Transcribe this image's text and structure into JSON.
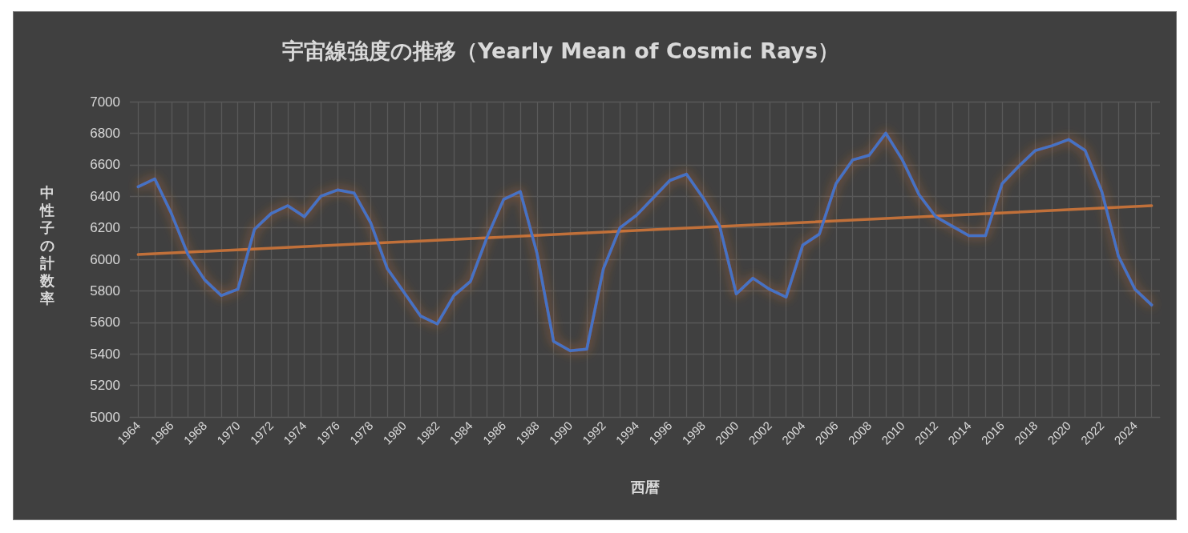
{
  "chart_data": {
    "type": "line",
    "title": "宇宙線強度の推移（Yearly Mean of Cosmic Rays）",
    "xlabel": "西暦",
    "ylabel": "中性子の計数率",
    "x": [
      1964,
      1965,
      1966,
      1967,
      1968,
      1969,
      1970,
      1971,
      1972,
      1973,
      1974,
      1975,
      1976,
      1977,
      1978,
      1979,
      1980,
      1981,
      1982,
      1983,
      1984,
      1985,
      1986,
      1987,
      1988,
      1989,
      1990,
      1991,
      1992,
      1993,
      1994,
      1995,
      1996,
      1997,
      1998,
      1999,
      2000,
      2001,
      2002,
      2003,
      2004,
      2005,
      2006,
      2007,
      2008,
      2009,
      2010,
      2011,
      2012,
      2013,
      2014,
      2015,
      2016,
      2017,
      2018,
      2019,
      2020,
      2021,
      2022,
      2023,
      2024,
      2025
    ],
    "series": [
      {
        "color": "#4472c4",
        "values": [
          6460,
          6510,
          6290,
          6030,
          5870,
          5770,
          5810,
          6190,
          6290,
          6340,
          6270,
          6400,
          6440,
          6420,
          6230,
          5940,
          5790,
          5640,
          5590,
          5770,
          5860,
          6140,
          6380,
          6430,
          6040,
          5480,
          5420,
          5430,
          5940,
          6200,
          6280,
          6390,
          6500,
          6540,
          6390,
          6210,
          5780,
          5880,
          5810,
          5760,
          6090,
          6160,
          6480,
          6630,
          6660,
          6800,
          6630,
          6410,
          6270,
          6210,
          6150,
          6150,
          6480,
          6590,
          6690,
          6720,
          6760,
          6690,
          6430,
          6020,
          5810,
          5710
        ]
      },
      {
        "type": "line",
        "color": "#c0703a",
        "x": [
          1964,
          2025
        ],
        "values": [
          6030,
          6340
        ]
      }
    ],
    "xlim": [
      1963.5,
      2025.5
    ],
    "xticks": [
      1964,
      {
        "value": 1965,
        "label": null
      },
      1966,
      {
        "value": 1967,
        "label": null
      },
      1968,
      {
        "value": 1969,
        "label": null
      },
      1970,
      {
        "value": 1971,
        "label": null
      },
      1972,
      {
        "value": 1973,
        "label": null
      },
      1974,
      {
        "value": 1975,
        "label": null
      },
      1976,
      {
        "value": 1977,
        "label": null
      },
      1978,
      {
        "value": 1979,
        "label": null
      },
      1980,
      {
        "value": 1981,
        "label": null
      },
      1982,
      {
        "value": 1983,
        "label": null
      },
      1984,
      {
        "value": 1985,
        "label": null
      },
      1986,
      {
        "value": 1987,
        "label": null
      },
      1988,
      {
        "value": 1989,
        "label": null
      },
      1990,
      {
        "value": 1991,
        "label": null
      },
      1992,
      {
        "value": 1993,
        "label": null
      },
      1994,
      {
        "value": 1995,
        "label": null
      },
      1996,
      {
        "value": 1997,
        "label": null
      },
      1998,
      {
        "value": 1999,
        "label": null
      },
      2000,
      {
        "value": 2001,
        "label": null
      },
      2002,
      {
        "value": 2003,
        "label": null
      },
      2004,
      {
        "value": 2005,
        "label": null
      },
      2006,
      {
        "value": 2007,
        "label": null
      },
      2008,
      {
        "value": 2009,
        "label": null
      },
      2010,
      {
        "value": 2011,
        "label": null
      },
      2012,
      {
        "value": 2013,
        "label": null
      },
      2014,
      {
        "value": 2015,
        "label": null
      },
      2016,
      {
        "value": 2017,
        "label": null
      },
      2018,
      {
        "value": 2019,
        "label": null
      },
      2020,
      {
        "value": 2021,
        "label": null
      },
      2022,
      {
        "value": 2023,
        "label": null
      },
      2024,
      {
        "value": 2025,
        "label": null
      }
    ],
    "ylim": [
      5000,
      7000
    ],
    "yticks": [
      5000,
      5200,
      5400,
      5600,
      5800,
      6000,
      6200,
      6400,
      6600,
      6800,
      7000
    ],
    "grid": true,
    "marker": "none",
    "line_style": "solid"
  }
}
